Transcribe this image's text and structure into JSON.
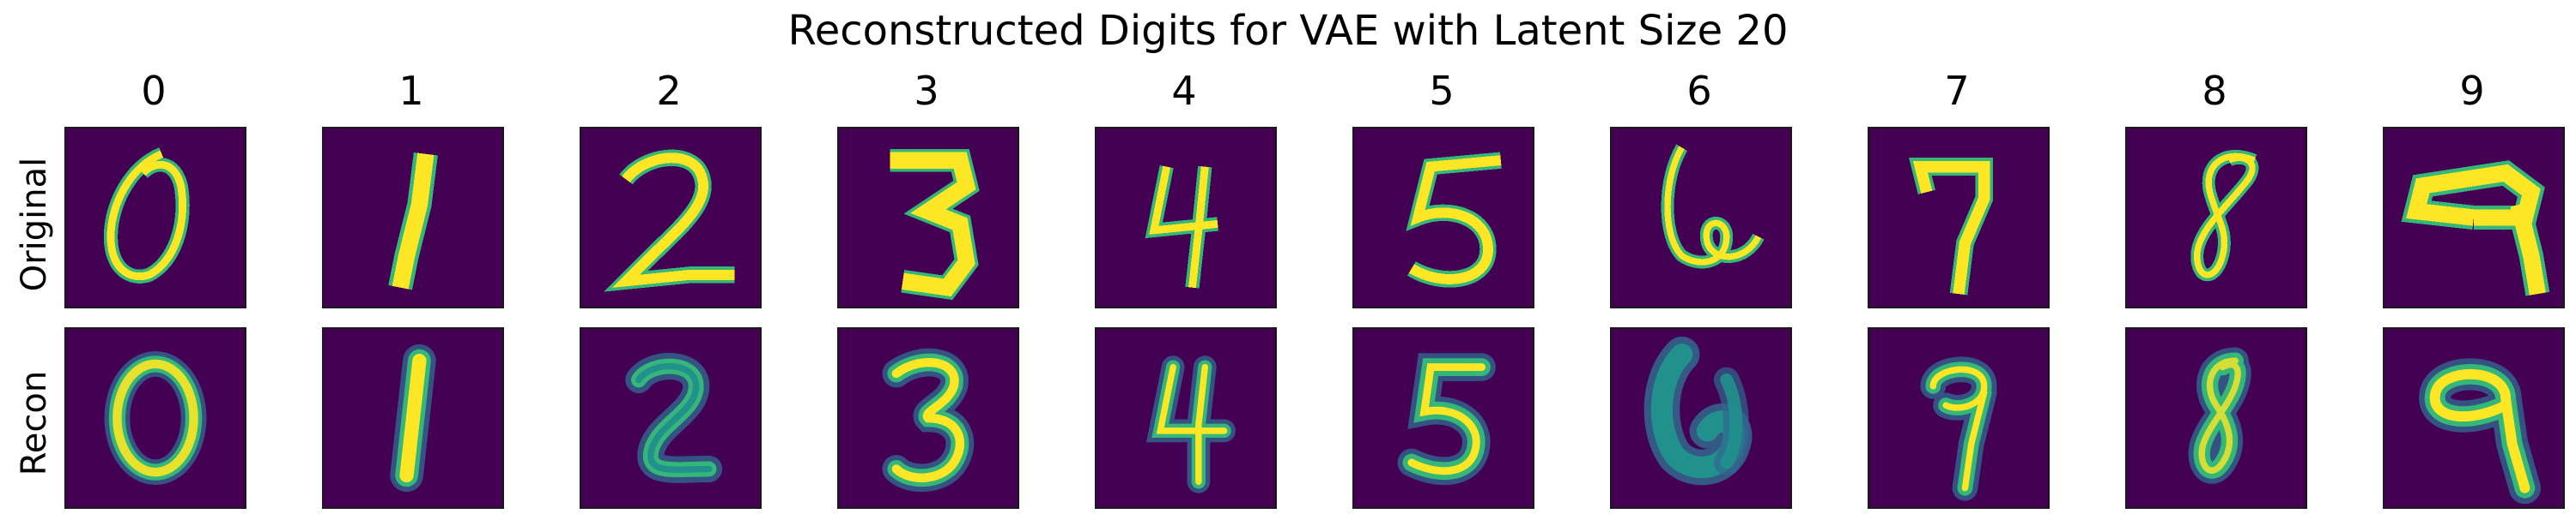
{
  "title": "Reconstructed Digits for VAE with Latent Size 20",
  "row_labels": [
    "Original",
    "Recon"
  ],
  "column_labels": [
    "0",
    "1",
    "2",
    "3",
    "4",
    "5",
    "6",
    "7",
    "8",
    "9"
  ],
  "colors": {
    "background": "#440154",
    "bright": "#fde725",
    "mid_green": "#35b779",
    "teal": "#21918c",
    "blue": "#31688e",
    "frame": "#1a1a1a"
  }
}
